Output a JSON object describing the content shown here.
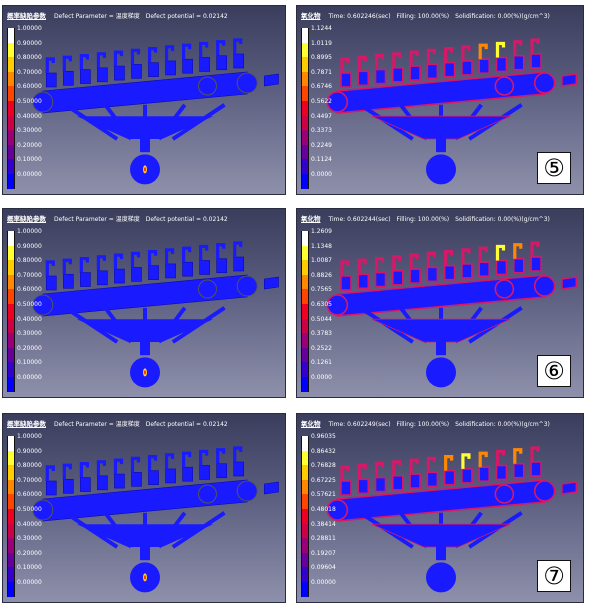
{
  "rows": [
    {
      "left": {
        "title": "概率缺陷参数",
        "parts": [
          "Defect Parameter = 温度梯度",
          "Defect potential = 0.02142"
        ],
        "legend": [
          "1.00000",
          "0.90000",
          "0.80000",
          "0.70000",
          "0.60000",
          "0.50000",
          "0.40000",
          "0.30000",
          "0.20000",
          "0.10000",
          "0.00000"
        ]
      },
      "right": {
        "title": "氧化物",
        "parts": [
          "Time: 0.602246(sec)",
          "Filling: 100.00(%)",
          "Solidification:  0.00(%)(g/cm^3)"
        ],
        "legend": [
          "1.1244",
          "1.0119",
          "0.8995",
          "0.7871",
          "0.6746",
          "0.5622",
          "0.4497",
          "0.3373",
          "0.2249",
          "0.1124",
          "0.0000"
        ],
        "label": "⑤"
      }
    },
    {
      "left": {
        "title": "概率缺陷参数",
        "parts": [
          "Defect Parameter = 温度梯度",
          "Defect potential = 0.02142"
        ],
        "legend": [
          "1.00000",
          "0.90000",
          "0.80000",
          "0.70000",
          "0.60000",
          "0.50000",
          "0.40000",
          "0.30000",
          "0.20000",
          "0.10000",
          "0.00000"
        ]
      },
      "right": {
        "title": "氧化物",
        "parts": [
          "Time: 0.602244(sec)",
          "Filling: 100.00(%)",
          "Solidification:  0.00(%)(g/cm^3)"
        ],
        "legend": [
          "1.2609",
          "1.1348",
          "1.0087",
          "0.8826",
          "0.7565",
          "0.6305",
          "0.5044",
          "0.3783",
          "0.2522",
          "0.1261",
          "0.0000"
        ],
        "label": "⑥"
      }
    },
    {
      "left": {
        "title": "概率缺陷参数",
        "parts": [
          "Defect Parameter = 温度梯度",
          "Defect potential = 0.02142"
        ],
        "legend": [
          "1.00000",
          "0.90000",
          "0.80000",
          "0.70000",
          "0.60000",
          "0.50000",
          "0.40000",
          "0.30000",
          "0.20000",
          "0.10000",
          "0.00000"
        ]
      },
      "right": {
        "title": "氧化物",
        "parts": [
          "Time: 0.602249(sec)",
          "Filling: 100.00(%)",
          "Solidification:  0.00(%)(g/cm^3)"
        ],
        "legend": [
          "0.96035",
          "0.86432",
          "0.76828",
          "0.67225",
          "0.57621",
          "0.48018",
          "0.38414",
          "0.28811",
          "0.19207",
          "0.09604",
          "0.00000"
        ],
        "label": "⑦"
      }
    }
  ],
  "colors": {
    "scale": [
      "#ffffff",
      "#ffff33",
      "#ffcc00",
      "#ff8800",
      "#ff4400",
      "#ee0022",
      "#cc0044",
      "#990077",
      "#66009a",
      "#3300cc",
      "#0000ff"
    ],
    "casting_blue": "#1a1aff",
    "oxide_red": "#d61868",
    "hotspot": "#ffcc33"
  }
}
